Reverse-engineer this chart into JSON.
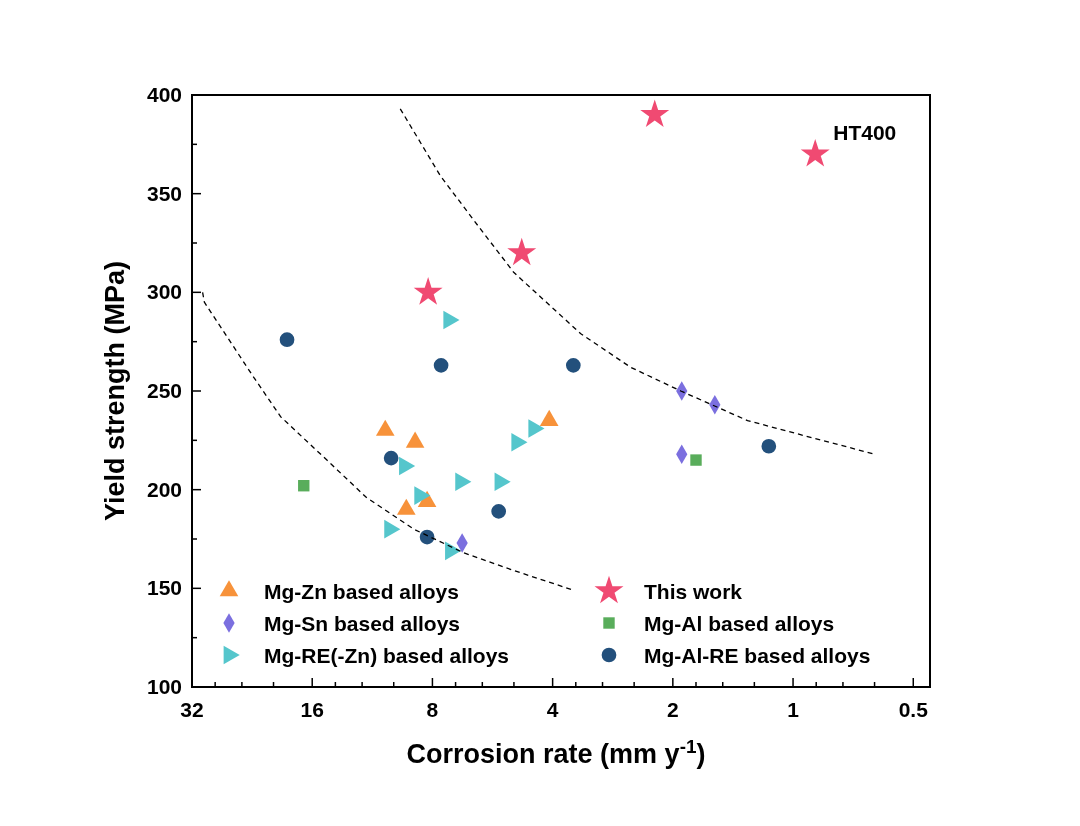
{
  "chart_data": {
    "type": "scatter",
    "xlabel": "Corrosion rate (mm y$^{-1}$)",
    "ylabel": "Yield strength (MPa)",
    "log": "x",
    "xlim": [
      32,
      0.454
    ],
    "xticks": [
      32,
      16,
      {
        "value": 28,
        "label": null
      },
      {
        "value": 24,
        "label": null
      },
      {
        "value": 20,
        "label": null
      },
      8,
      {
        "value": 14,
        "label": null
      },
      {
        "value": 12,
        "label": null
      },
      {
        "value": 10,
        "label": null
      },
      4,
      {
        "value": 7,
        "label": null
      },
      {
        "value": 6,
        "label": null
      },
      {
        "value": 5,
        "label": null
      },
      2,
      {
        "value": 3.5,
        "label": null
      },
      {
        "value": 3,
        "label": null
      },
      {
        "value": 2.5,
        "label": null
      },
      1,
      {
        "value": 1.75,
        "label": null
      },
      {
        "value": 1.5,
        "label": null
      },
      {
        "value": 1.25,
        "label": null
      },
      0.5,
      {
        "value": 0.875,
        "label": null
      },
      {
        "value": 0.75,
        "label": null
      },
      {
        "value": 0.625,
        "label": null
      }
    ],
    "ylim": [
      100,
      400
    ],
    "yticks": [
      100,
      {
        "value": 125,
        "label": null
      },
      150,
      {
        "value": 175,
        "label": null
      },
      200,
      {
        "value": 225,
        "label": null
      },
      250,
      {
        "value": 275,
        "label": null
      },
      300,
      {
        "value": 325,
        "label": null
      },
      350,
      {
        "value": 375,
        "label": null
      },
      400
    ],
    "grid": false,
    "legend": "bottom",
    "series": [
      {
        "name": "Mg-Zn based alloys",
        "color": "#f7923a",
        "marker": "triangle",
        "x": [
          10.5,
          8.84,
          9.3,
          8.25,
          4.08
        ],
        "values": [
          230,
          224,
          190,
          194,
          235
        ]
      },
      {
        "name": "Mg-Sn based alloys",
        "color": "#7b6fdf",
        "marker": "diamond",
        "x": [
          6.74,
          1.9,
          1.57,
          1.9
        ],
        "values": [
          173,
          250,
          243,
          218
        ]
      },
      {
        "name": "Mg-RE(-Zn) based alloys",
        "color": "#55c6cc",
        "marker": "triangle-right",
        "x": [
          7.28,
          9.4,
          4.92,
          4.46,
          6.8,
          5.42,
          8.61,
          10.24,
          7.21
        ],
        "values": [
          286,
          212,
          224,
          231,
          204,
          204,
          197,
          180,
          169
        ]
      },
      {
        "name": "This work",
        "color": "#f04a72",
        "marker": "star",
        "x": [
          8.2,
          4.78,
          2.22,
          0.88
        ],
        "values": [
          300,
          320,
          390,
          370
        ]
      },
      {
        "name": "Mg-Al based alloys",
        "color": "#59ad5b",
        "marker": "square",
        "x": [
          16.8,
          1.75
        ],
        "values": [
          202,
          215
        ]
      },
      {
        "name": "Mg-Al-RE based alloys",
        "color": "#23507c",
        "marker": "circle",
        "x": [
          18.5,
          7.61,
          3.55,
          10.15,
          5.46,
          8.25,
          1.15
        ],
        "values": [
          276,
          263,
          263,
          216,
          189,
          176,
          222
        ]
      },
      {
        "type": "line",
        "color": "#000000",
        "line_style": "dashed",
        "marker": "none",
        "x": [
          30.1,
          29.8,
          22.6,
          19.2,
          14.7,
          11.7,
          8.91,
          6.68,
          5.0,
          3.54
        ],
        "values": [
          300,
          295,
          258,
          237,
          215,
          196,
          180,
          168,
          159,
          149
        ]
      },
      {
        "type": "line",
        "color": "#000000",
        "line_style": "dashed",
        "marker": "none",
        "x": [
          9.63,
          7.64,
          6.06,
          5.0,
          3.4,
          2.55,
          1.91,
          1.3,
          0.884,
          0.625
        ],
        "values": [
          393,
          359,
          332,
          310,
          279,
          262,
          250,
          235,
          226,
          218
        ]
      }
    ],
    "annotations": [
      {
        "text": "HT400",
        "x": 0.88,
        "y": 370
      }
    ]
  }
}
